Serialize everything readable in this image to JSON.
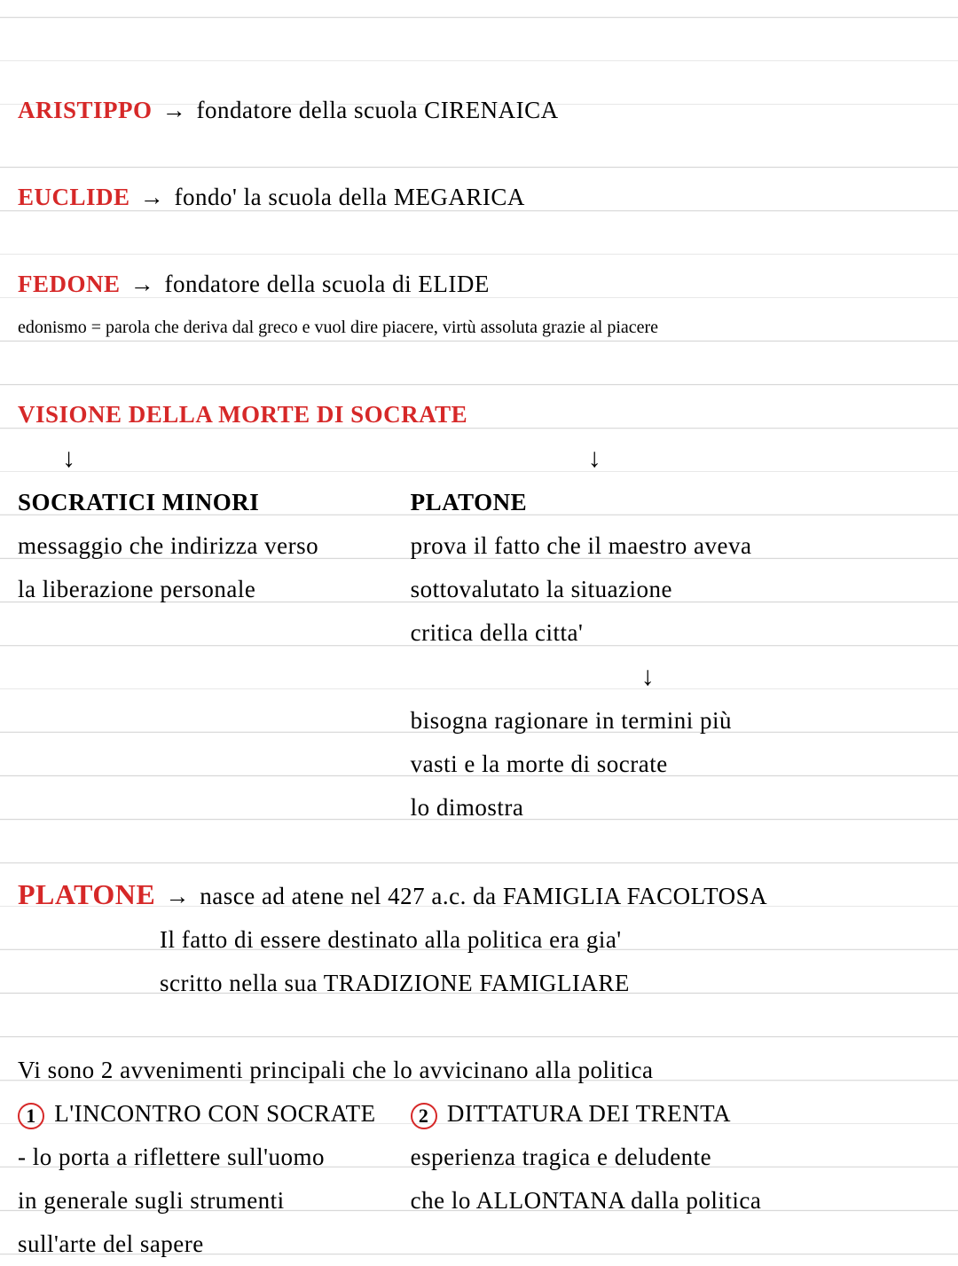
{
  "colors": {
    "red": "#d62828",
    "black": "#000000",
    "rule": "#d8d8d8",
    "bg": "#ffffff"
  },
  "fontsize_main": 27,
  "fontsize_small": 20,
  "line_height": 49,
  "aristippo": {
    "name": "ARISTIPPO",
    "arrow": "→",
    "text": "fondatore della scuola CIRENAICA"
  },
  "euclide": {
    "name": "EUCLIDE",
    "arrow": "→",
    "text": "fondo' la scuola della MEGARICA"
  },
  "fedone": {
    "name": "FEDONE",
    "arrow": "→",
    "text": "fondatore della scuola di ELIDE",
    "note": "edonismo = parola che deriva dal greco e vuol dire piacere, virtù assoluta grazie al piacere"
  },
  "visione": {
    "title": "VISIONE DELLA MORTE DI SOCRATE",
    "down": "↓",
    "left": {
      "title": "SOCRATICI MINORI",
      "l1": "messaggio che indirizza verso",
      "l2": "la liberazione personale"
    },
    "right": {
      "title": "PLATONE",
      "l1": "prova il fatto che il maestro aveva",
      "l2": "sottovalutato la situazione",
      "l3": "critica della citta'",
      "l4": "bisogna ragionare in termini più",
      "l5": "vasti e la morte di socrate",
      "l6": "lo dimostra"
    }
  },
  "platone": {
    "name": "PLATONE",
    "arrow": "→",
    "l1": "nasce ad atene nel 427 a.c. da FAMIGLIA FACOLTOSA",
    "l2": "Il fatto di essere destinato alla politica era gia'",
    "l3": "scritto nella sua TRADIZIONE FAMIGLIARE"
  },
  "avvenimenti": {
    "intro": "Vi sono 2 avvenimenti principali che lo avvicinano alla politica",
    "n1": "1",
    "n2": "2",
    "e1_title": "L'INCONTRO CON SOCRATE",
    "e1_l1": "- lo porta a riflettere sull'uomo",
    "e1_l2": "in generale sugli strumenti",
    "e1_l3": "sull'arte del sapere",
    "e2_title": "DITTATURA DEI TRENTA",
    "e2_l1": "esperienza tragica e deludente",
    "e2_l2": "che lo ALLONTANA dalla politica"
  }
}
